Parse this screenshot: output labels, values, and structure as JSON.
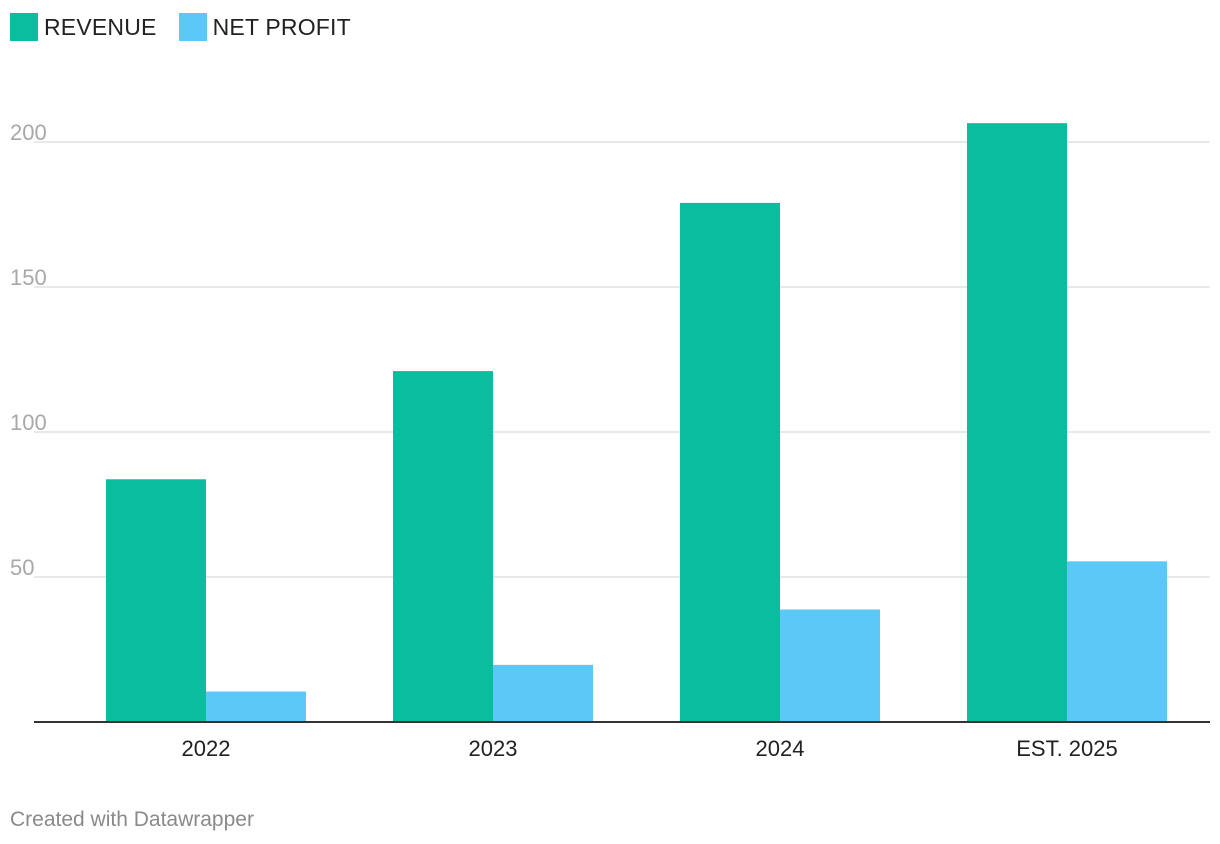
{
  "colors": {
    "revenue": "#0bbd9f",
    "net_profit": "#5bc8f7",
    "grid": "#e1e1e1",
    "axis": "#333333",
    "tick_label": "#a8a8a8",
    "category_label": "#222222"
  },
  "footer": {
    "credit": "Created with Datawrapper"
  },
  "chart_data": {
    "type": "bar",
    "categories": [
      "2022",
      "2023",
      "2024",
      "EST. 2025"
    ],
    "series": [
      {
        "name": "REVENUE",
        "values": [
          83.7,
          121,
          179,
          206.5
        ],
        "color": "#0bbd9f"
      },
      {
        "name": "NET PROFIT",
        "values": [
          10.5,
          19.7,
          38.8,
          55.4
        ],
        "color": "#5bc8f7"
      }
    ],
    "ylim": [
      0,
      220
    ],
    "yticks": [
      50,
      100,
      150,
      200
    ],
    "grid": true,
    "legend_position": "top-left",
    "title": "",
    "xlabel": "",
    "ylabel": ""
  }
}
